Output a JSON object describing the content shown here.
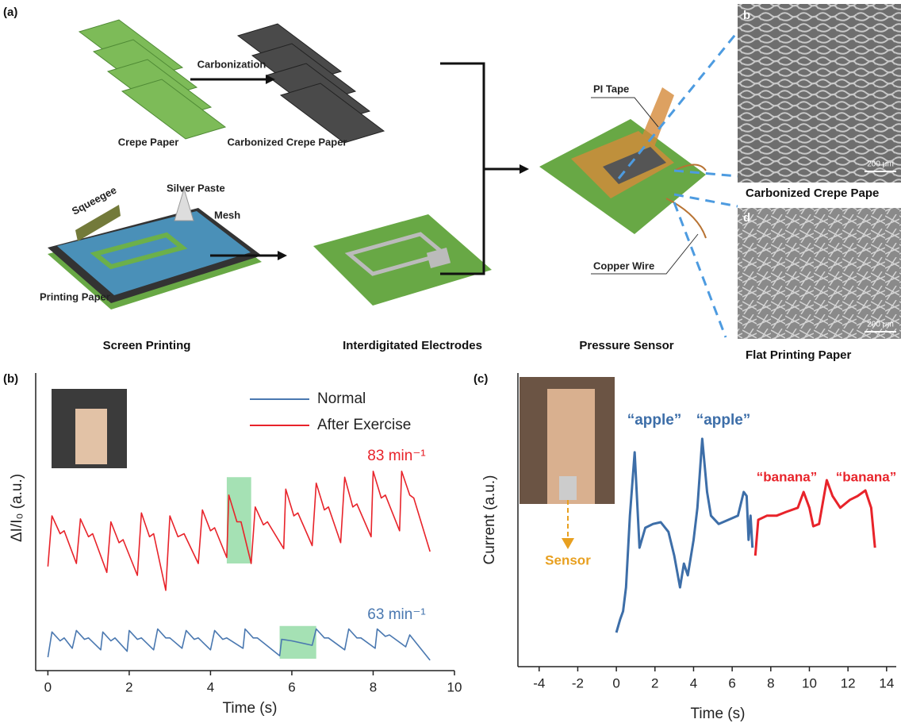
{
  "panel_a": {
    "label": "(a)",
    "crepe_paper": "Crepe Paper",
    "carbonization": "Carbonization",
    "carbonized_crepe_paper": "Carbonized Crepe Paper",
    "squeegee": "Squeegee",
    "silver_paste": "Silver Paste",
    "mesh": "Mesh",
    "printing_paper": "Printing Paper",
    "screen_printing": "Screen Printing",
    "interdigitated_electrodes": "Interdigitated Electrodes",
    "pi_tape": "PI Tape",
    "copper_wire": "Copper Wire",
    "pressure_sensor": "Pressure Sensor",
    "sem_b_label": "b",
    "sem_b_scale": "200 μm",
    "sem_b_caption": "Carbonized Crepe Pape",
    "sem_d_label": "d",
    "sem_d_scale": "200 μm",
    "sem_d_caption": "Flat Printing Paper"
  },
  "chart_data": [
    {
      "type": "line",
      "panel_label": "(b)",
      "x_label": "Time (s)",
      "y_label": "ΔI/I₀ (a.u.)",
      "xlim": [
        -0.3,
        10.0
      ],
      "xticks": [
        0,
        2,
        4,
        6,
        8,
        10
      ],
      "ylim": [
        0,
        10
      ],
      "series": [
        {
          "name": "Normal",
          "color": "#4a78b0",
          "x": [
            0.0,
            0.1,
            0.3,
            0.4,
            0.6,
            0.7,
            0.9,
            1.0,
            1.3,
            1.35,
            1.55,
            1.65,
            1.95,
            2.0,
            2.2,
            2.3,
            2.6,
            2.7,
            2.9,
            3.0,
            3.3,
            3.4,
            3.6,
            3.7,
            4.0,
            4.1,
            4.3,
            4.4,
            4.8,
            4.85,
            5.05,
            5.15,
            5.7,
            5.75,
            6.0,
            6.5,
            6.6,
            6.8,
            6.9,
            7.3,
            7.4,
            7.6,
            7.7,
            8.05,
            8.1,
            8.3,
            8.4,
            8.8,
            8.9,
            9.4
          ],
          "values": [
            0.45,
            1.3,
            1.0,
            1.1,
            0.75,
            1.35,
            1.05,
            1.1,
            0.7,
            1.3,
            1.0,
            1.1,
            0.65,
            1.35,
            1.05,
            1.1,
            0.7,
            1.4,
            1.1,
            1.1,
            0.75,
            1.35,
            1.05,
            1.1,
            0.7,
            1.35,
            1.05,
            1.1,
            0.75,
            1.4,
            1.1,
            1.1,
            0.5,
            1.05,
            1.0,
            0.85,
            1.4,
            1.1,
            1.1,
            0.7,
            1.4,
            1.1,
            1.1,
            0.75,
            1.4,
            1.15,
            1.2,
            0.8,
            1.2,
            0.35
          ]
        },
        {
          "name": "After Exercise",
          "color": "#e8232a",
          "x": [
            0.0,
            0.1,
            0.3,
            0.4,
            0.7,
            0.8,
            1.0,
            1.1,
            1.45,
            1.55,
            1.75,
            1.85,
            2.2,
            2.3,
            2.5,
            2.6,
            2.9,
            3.0,
            3.2,
            3.35,
            3.7,
            3.8,
            4.0,
            4.1,
            4.4,
            4.45,
            4.65,
            4.75,
            5.0,
            5.1,
            5.3,
            5.4,
            5.8,
            5.85,
            6.05,
            6.15,
            6.5,
            6.6,
            6.8,
            6.9,
            7.2,
            7.3,
            7.5,
            7.6,
            7.95,
            8.0,
            8.2,
            8.3,
            8.65,
            8.7,
            8.9,
            9.0,
            9.4
          ],
          "values": [
            3.5,
            5.2,
            4.6,
            4.7,
            3.6,
            5.1,
            4.5,
            4.6,
            3.3,
            5.0,
            4.3,
            4.4,
            3.2,
            5.3,
            4.5,
            4.6,
            2.7,
            5.2,
            4.5,
            4.6,
            3.6,
            5.4,
            4.7,
            4.8,
            3.8,
            5.9,
            5.0,
            5.0,
            3.6,
            5.5,
            4.9,
            5.0,
            4.1,
            6.1,
            5.2,
            5.3,
            4.2,
            6.3,
            5.4,
            5.5,
            4.3,
            6.5,
            5.5,
            5.6,
            4.5,
            6.7,
            5.8,
            5.9,
            4.7,
            6.7,
            5.9,
            5.8,
            4.0
          ]
        }
      ],
      "highlights": [
        {
          "x": [
            4.4,
            5.0
          ],
          "y": [
            3.6,
            6.5
          ]
        },
        {
          "x": [
            5.7,
            6.6
          ],
          "y": [
            0.4,
            1.5
          ]
        }
      ],
      "annotations": [
        "83 min⁻¹",
        "63 min⁻¹"
      ]
    },
    {
      "type": "line",
      "panel_label": "(c)",
      "x_label": "Time (s)",
      "y_label": "Current (a.u.)",
      "xlim": [
        -5.1,
        14.5
      ],
      "xticks": [
        -4,
        -2,
        0,
        2,
        4,
        6,
        8,
        10,
        12,
        14
      ],
      "ylim": [
        0,
        10
      ],
      "series": [
        {
          "color": "#3d6ea8",
          "x": [
            0,
            0.2,
            0.35,
            0.5,
            0.7,
            0.95,
            1.2,
            1.5,
            1.9,
            2.3,
            2.7,
            3.0,
            3.3,
            3.5,
            3.7,
            4.0,
            4.2,
            4.45,
            4.7,
            4.9,
            5.3,
            5.8,
            6.3,
            6.6,
            6.75,
            6.85,
            6.95,
            7.05
          ],
          "values": [
            1.16,
            1.62,
            1.89,
            2.7,
            5.14,
            7.3,
            4.05,
            4.73,
            4.86,
            4.92,
            4.59,
            3.78,
            2.7,
            3.51,
            3.11,
            4.32,
            5.41,
            7.76,
            5.95,
            5.14,
            4.86,
            5.0,
            5.14,
            5.95,
            5.81,
            4.32,
            5.14,
            4.05
          ]
        },
        {
          "color": "#e8232a",
          "x": [
            7.2,
            7.35,
            7.8,
            8.3,
            8.8,
            9.4,
            9.7,
            10.0,
            10.2,
            10.5,
            10.9,
            11.2,
            11.6,
            12.1,
            12.5,
            12.9,
            13.2,
            13.4
          ],
          "values": [
            3.78,
            5.0,
            5.14,
            5.14,
            5.27,
            5.41,
            5.95,
            5.41,
            4.78,
            4.86,
            6.35,
            5.81,
            5.41,
            5.68,
            5.81,
            6.0,
            5.41,
            4.05
          ]
        }
      ],
      "annotations": [
        "“apple”",
        "“apple”",
        "“banana”",
        "“banana”",
        "Sensor"
      ]
    }
  ]
}
